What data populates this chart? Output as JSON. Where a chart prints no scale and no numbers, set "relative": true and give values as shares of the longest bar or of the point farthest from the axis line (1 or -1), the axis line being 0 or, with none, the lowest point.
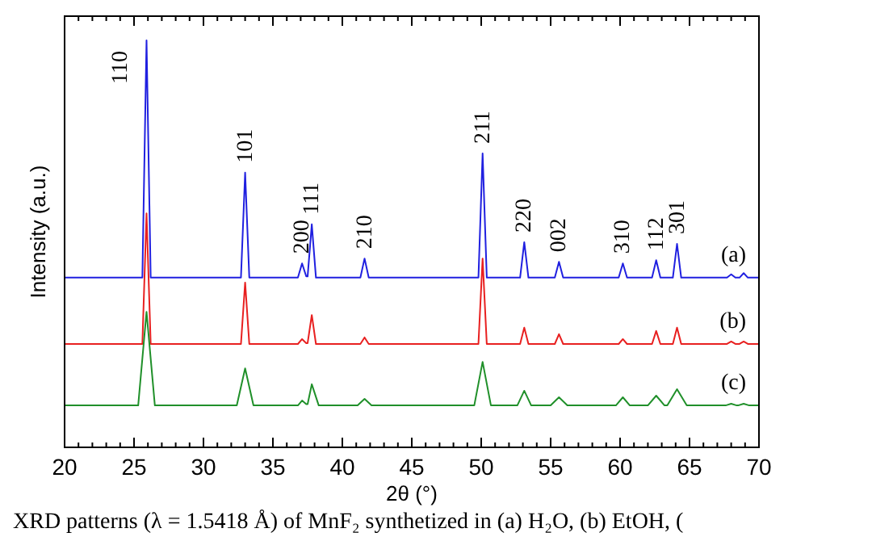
{
  "chart_data": {
    "type": "line",
    "relative": true,
    "xlabel": "2θ (°)",
    "ylabel": "Intensity (a.u.)",
    "xlim": [
      20,
      70
    ],
    "xticks": [
      20,
      {
        "value": 21,
        "label": null
      },
      {
        "value": 22,
        "label": null
      },
      {
        "value": 23,
        "label": null
      },
      {
        "value": 24,
        "label": null
      },
      25,
      {
        "value": 26,
        "label": null
      },
      {
        "value": 27,
        "label": null
      },
      {
        "value": 28,
        "label": null
      },
      {
        "value": 29,
        "label": null
      },
      30,
      {
        "value": 31,
        "label": null
      },
      {
        "value": 32,
        "label": null
      },
      {
        "value": 33,
        "label": null
      },
      {
        "value": 34,
        "label": null
      },
      35,
      {
        "value": 36,
        "label": null
      },
      {
        "value": 37,
        "label": null
      },
      {
        "value": 38,
        "label": null
      },
      {
        "value": 39,
        "label": null
      },
      40,
      {
        "value": 41,
        "label": null
      },
      {
        "value": 42,
        "label": null
      },
      {
        "value": 43,
        "label": null
      },
      {
        "value": 44,
        "label": null
      },
      45,
      {
        "value": 46,
        "label": null
      },
      {
        "value": 47,
        "label": null
      },
      {
        "value": 48,
        "label": null
      },
      {
        "value": 49,
        "label": null
      },
      50,
      {
        "value": 51,
        "label": null
      },
      {
        "value": 52,
        "label": null
      },
      {
        "value": 53,
        "label": null
      },
      {
        "value": 54,
        "label": null
      },
      55,
      {
        "value": 56,
        "label": null
      },
      {
        "value": 57,
        "label": null
      },
      {
        "value": 58,
        "label": null
      },
      {
        "value": 59,
        "label": null
      },
      60,
      {
        "value": 61,
        "label": null
      },
      {
        "value": 62,
        "label": null
      },
      {
        "value": 63,
        "label": null
      },
      {
        "value": 64,
        "label": null
      },
      65,
      {
        "value": 66,
        "label": null
      },
      {
        "value": 67,
        "label": null
      },
      {
        "value": 68,
        "label": null
      },
      {
        "value": 69,
        "label": null
      },
      70
    ],
    "grid": false,
    "marker": "none",
    "line_style": "solid",
    "series": [
      {
        "name": "(a)",
        "color": "#2020e0",
        "x": [
          20,
          25.6,
          25.9,
          26.2,
          32.7,
          33.0,
          33.3,
          36.8,
          37.1,
          37.4,
          37.5,
          37.8,
          38.1,
          41.3,
          41.6,
          41.9,
          49.8,
          50.1,
          50.4,
          52.8,
          53.1,
          53.4,
          55.3,
          55.6,
          55.9,
          59.9,
          60.2,
          60.5,
          62.3,
          62.6,
          62.9,
          63.8,
          64.1,
          64.4,
          67.7,
          68.0,
          68.3,
          68.6,
          68.9,
          69.2,
          70
        ],
        "values": [
          0.417,
          0.417,
          1,
          0.417,
          0.417,
          0.675,
          0.417,
          0.417,
          0.452,
          0.42,
          0.42,
          0.548,
          0.417,
          0.417,
          0.464,
          0.417,
          0.417,
          0.722,
          0.417,
          0.417,
          0.504,
          0.417,
          0.417,
          0.456,
          0.417,
          0.417,
          0.452,
          0.417,
          0.417,
          0.46,
          0.417,
          0.417,
          0.5,
          0.417,
          0.417,
          0.425,
          0.417,
          0.417,
          0.428,
          0.417,
          0.417
        ]
      },
      {
        "name": "(b)",
        "color": "#e82020",
        "x": [
          20,
          25.6,
          25.9,
          26.2,
          32.7,
          33.0,
          33.3,
          36.8,
          37.1,
          37.4,
          37.5,
          37.8,
          38.1,
          41.3,
          41.6,
          41.9,
          49.8,
          50.1,
          50.4,
          52.8,
          53.1,
          53.4,
          55.3,
          55.6,
          55.9,
          59.9,
          60.2,
          60.5,
          62.3,
          62.6,
          62.9,
          63.8,
          64.1,
          64.4,
          67.7,
          68.0,
          68.3,
          68.6,
          68.9,
          69.2,
          70
        ],
        "values": [
          0.254,
          0.254,
          0.575,
          0.254,
          0.254,
          0.405,
          0.254,
          0.254,
          0.266,
          0.256,
          0.256,
          0.325,
          0.254,
          0.254,
          0.27,
          0.254,
          0.254,
          0.464,
          0.254,
          0.254,
          0.294,
          0.254,
          0.254,
          0.278,
          0.254,
          0.254,
          0.266,
          0.254,
          0.254,
          0.286,
          0.254,
          0.254,
          0.294,
          0.254,
          0.254,
          0.26,
          0.254,
          0.254,
          0.26,
          0.254,
          0.254
        ]
      },
      {
        "name": "(c)",
        "color": "#20902a",
        "x": [
          20,
          25.3,
          25.9,
          26.5,
          32.4,
          33.0,
          33.6,
          36.8,
          37.1,
          37.4,
          37.5,
          37.8,
          38.3,
          41.1,
          41.6,
          42.1,
          49.5,
          50.1,
          50.7,
          52.6,
          53.1,
          53.6,
          55.0,
          55.6,
          56.2,
          59.7,
          60.2,
          60.7,
          62.0,
          62.6,
          63.2,
          63.4,
          64.1,
          64.8,
          67.6,
          68.0,
          68.4,
          68.5,
          68.9,
          69.3,
          70
        ],
        "values": [
          0.103,
          0.103,
          0.333,
          0.103,
          0.103,
          0.194,
          0.103,
          0.103,
          0.115,
          0.106,
          0.106,
          0.155,
          0.103,
          0.103,
          0.119,
          0.103,
          0.103,
          0.21,
          0.103,
          0.103,
          0.139,
          0.103,
          0.103,
          0.123,
          0.103,
          0.103,
          0.123,
          0.103,
          0.103,
          0.127,
          0.103,
          0.103,
          0.143,
          0.103,
          0.103,
          0.107,
          0.103,
          0.103,
          0.107,
          0.103,
          0.103
        ]
      }
    ],
    "annotations": [
      {
        "text": "110",
        "x": 25.9,
        "y": 1
      },
      {
        "text": "101",
        "x": 33.0,
        "y": 0.675
      },
      {
        "text": "200",
        "x": 37.1,
        "y": 0.452
      },
      {
        "text": "111",
        "x": 37.8,
        "y": 0.548
      },
      {
        "text": "210",
        "x": 41.6,
        "y": 0.464
      },
      {
        "text": "211",
        "x": 50.1,
        "y": 0.722
      },
      {
        "text": "220",
        "x": 53.1,
        "y": 0.504
      },
      {
        "text": "002",
        "x": 55.6,
        "y": 0.456
      },
      {
        "text": "310",
        "x": 60.2,
        "y": 0.452
      },
      {
        "text": "112",
        "x": 62.6,
        "y": 0.46
      },
      {
        "text": "301",
        "x": 64.1,
        "y": 0.5
      },
      "XRD patterns (λ = 1.5418 Å) of MnF₂ synthetized in (a) H₂O, (b) EtOH, ("
    ]
  }
}
